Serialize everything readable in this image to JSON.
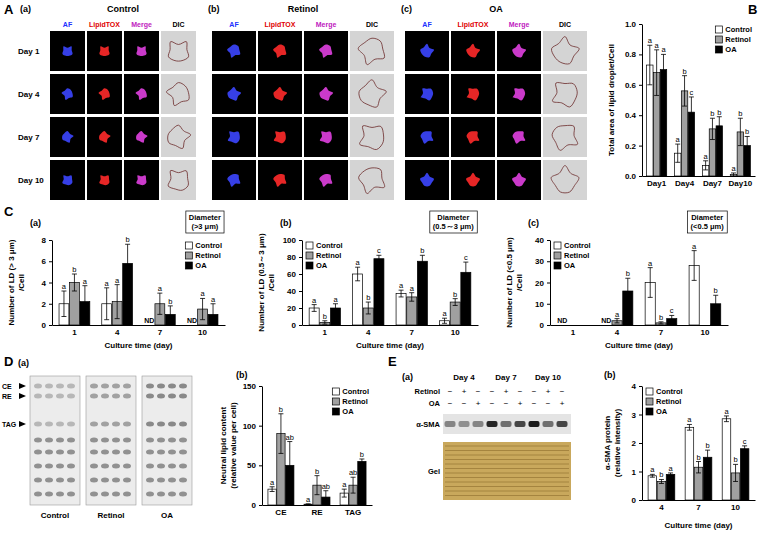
{
  "chart_data": [
    {
      "type": "bar",
      "categories": [
        "Day1",
        "Day4",
        "Day7",
        "Day10"
      ],
      "y_label": "Total area of lipid droplet/Cell",
      "ylim": [
        0,
        1.0
      ],
      "yticks": [
        {
          "value": 0,
          "label": "0.0"
        },
        {
          "value": 0.2,
          "label": "0.2"
        },
        {
          "value": 0.4,
          "label": "0.4"
        },
        {
          "value": 0.6,
          "label": "0.6"
        },
        {
          "value": 0.8,
          "label": "0.8"
        },
        {
          "value": 1.0,
          "label": "1.0"
        }
      ],
      "legend": "upper right",
      "series": [
        {
          "name": "Control",
          "color": "#ffffff",
          "values": [
            0.73,
            0.15,
            0.07,
            0.01
          ],
          "errors": [
            0.13,
            0.06,
            0.03,
            0.01
          ],
          "letters": [
            "a",
            "a",
            "a",
            "a"
          ]
        },
        {
          "name": "Retinol",
          "color": "#a0a0a0",
          "values": [
            0.68,
            0.56,
            0.31,
            0.29
          ],
          "errors": [
            0.15,
            0.1,
            0.07,
            0.09
          ],
          "letters": [
            "a",
            "b",
            "b",
            "b"
          ]
        },
        {
          "name": "OA",
          "color": "#000000",
          "values": [
            0.7,
            0.42,
            0.33,
            0.2
          ],
          "errors": [
            0.1,
            0.1,
            0.06,
            0.06
          ],
          "letters": [
            "a",
            "c",
            "b",
            "b"
          ]
        }
      ]
    },
    {
      "type": "bar",
      "title": "(a)",
      "categories": [
        "1",
        "4",
        "7",
        "10"
      ],
      "x_label": "Culture time (day)",
      "y_label": [
        "Number of LD (> 3 μm)",
        "/Cell"
      ],
      "annotation": [
        "Diameter",
        "(>3 μm)"
      ],
      "ylim": [
        0,
        8
      ],
      "yticks": [
        0,
        2,
        4,
        6,
        8
      ],
      "legend": "upper right",
      "series": [
        {
          "name": "Control",
          "color": "#ffffff",
          "values": [
            2.0,
            2.0,
            null,
            null
          ],
          "errors": [
            1.2,
            1.5,
            null,
            null
          ],
          "letters": [
            "a",
            "a",
            null,
            null
          ],
          "value_labels": [
            null,
            null,
            "ND",
            "ND"
          ]
        },
        {
          "name": "Retinol",
          "color": "#a0a0a0",
          "values": [
            4.0,
            2.2,
            2.0,
            1.5
          ],
          "errors": [
            0.8,
            1.6,
            1.0,
            1.0
          ],
          "letters": [
            "b",
            "a",
            "a",
            "a"
          ]
        },
        {
          "name": "OA",
          "color": "#000000",
          "values": [
            2.2,
            5.8,
            1.0,
            1.0
          ],
          "errors": [
            1.5,
            1.8,
            0.8,
            1.0
          ],
          "letters": [
            "a",
            "b",
            "b",
            "a"
          ]
        }
      ]
    },
    {
      "type": "bar",
      "title": "(b)",
      "categories": [
        "1",
        "4",
        "7",
        "10"
      ],
      "x_label": "Culture time (day)",
      "y_label": [
        "Number of LD (0.5～3 μm)",
        "/Cell"
      ],
      "annotation": [
        "Diameter",
        "(0.5～3 μm)"
      ],
      "ylim": [
        0,
        100
      ],
      "yticks": [
        0,
        20,
        40,
        60,
        80,
        100
      ],
      "legend": "upper left",
      "series": [
        {
          "name": "Control",
          "color": "#ffffff",
          "values": [
            20,
            60,
            37,
            5
          ],
          "errors": [
            4,
            8,
            4,
            3
          ],
          "letters": [
            "a",
            "a",
            "a",
            "a"
          ]
        },
        {
          "name": "Retinol",
          "color": "#a0a0a0",
          "values": [
            3,
            20,
            33,
            27
          ],
          "errors": [
            2,
            7,
            5,
            4
          ],
          "letters": [
            "b",
            "b",
            "a",
            "b"
          ]
        },
        {
          "name": "OA",
          "color": "#000000",
          "values": [
            20,
            78,
            75,
            62
          ],
          "errors": [
            5,
            4,
            7,
            12
          ],
          "letters": [
            "a",
            "c",
            "b",
            "c"
          ]
        }
      ]
    },
    {
      "type": "bar",
      "title": "(c)",
      "categories": [
        "1",
        "4",
        "7",
        "10"
      ],
      "x_label": "Culture time (day)",
      "y_label": [
        "Number of LD (<0.5 μm)",
        "/Cell"
      ],
      "annotation": [
        "Diameter",
        "(<0.5 μm)"
      ],
      "ylim": [
        0,
        40
      ],
      "yticks": [
        0,
        10,
        20,
        30,
        40
      ],
      "legend": "upper left",
      "series": [
        {
          "name": "Control",
          "color": "#ffffff",
          "values": [
            null,
            null,
            20,
            28
          ],
          "errors": [
            null,
            null,
            7,
            7
          ],
          "letters": [
            null,
            null,
            "a",
            "a"
          ],
          "value_labels": [
            "ND",
            "ND",
            null,
            null
          ]
        },
        {
          "name": "Retinol",
          "color": "#a0a0a0",
          "values": [
            null,
            2,
            1,
            null
          ],
          "errors": [
            null,
            1,
            0.5,
            null
          ],
          "letters": [
            null,
            "a",
            "b",
            null
          ]
        },
        {
          "name": "OA",
          "color": "#000000",
          "values": [
            null,
            16,
            3,
            10
          ],
          "errors": [
            null,
            6,
            1.5,
            4
          ],
          "letters": [
            null,
            "b",
            "c",
            "b"
          ]
        }
      ]
    },
    {
      "type": "bar",
      "title": "(b)",
      "categories": [
        "CE",
        "RE",
        "TAG"
      ],
      "y_label": [
        "Neutral lipid content",
        "(relative value per cell)"
      ],
      "ylim": [
        0,
        150
      ],
      "yticks": [
        0,
        50,
        100,
        150
      ],
      "legend": "upper right",
      "series": [
        {
          "name": "Control",
          "color": "#ffffff",
          "values": [
            20,
            1,
            15
          ],
          "errors": [
            3,
            0.5,
            5
          ],
          "letters": [
            "a",
            "a",
            "a"
          ]
        },
        {
          "name": "Retinol",
          "color": "#a0a0a0",
          "values": [
            90,
            25,
            25
          ],
          "errors": [
            25,
            12,
            10
          ],
          "letters": [
            "b",
            "b",
            "ab"
          ]
        },
        {
          "name": "OA",
          "color": "#000000",
          "values": [
            50,
            10,
            55
          ],
          "errors": [
            30,
            8,
            3
          ],
          "letters": [
            "ab",
            "ab",
            "b"
          ]
        }
      ]
    },
    {
      "type": "bar",
      "title": "(b)",
      "categories": [
        "4",
        "7",
        "10"
      ],
      "x_label": "Culture time (day)",
      "y_label": [
        "α-SMA protein",
        "(relative intensity)"
      ],
      "ylim": [
        0,
        4
      ],
      "yticks": [
        0,
        1,
        2,
        3,
        4
      ],
      "legend": "upper left",
      "series": [
        {
          "name": "Control",
          "color": "#ffffff",
          "values": [
            0.85,
            2.55,
            2.85
          ],
          "errors": [
            0.05,
            0.1,
            0.1
          ],
          "letters": [
            "a",
            "a",
            "a"
          ]
        },
        {
          "name": "Retinol",
          "color": "#a0a0a0",
          "values": [
            0.65,
            1.15,
            0.95
          ],
          "errors": [
            0.07,
            0.2,
            0.3
          ],
          "letters": [
            "b",
            "b",
            "b"
          ]
        },
        {
          "name": "OA",
          "color": "#000000",
          "values": [
            0.9,
            1.5,
            1.8
          ],
          "errors": [
            0.05,
            0.25,
            0.1
          ],
          "letters": [
            "a",
            "b",
            "c"
          ]
        }
      ]
    }
  ],
  "figure": {
    "panel_labels": [
      "A",
      "B",
      "C",
      "D",
      "E"
    ],
    "micrographs": {
      "channels": [
        "AF",
        "LipidTOX",
        "Merge",
        "DIC"
      ],
      "rows": [
        "Day 1",
        "Day 4",
        "Day 7",
        "Day 10"
      ],
      "panels": [
        {
          "label": "(a)",
          "title": "Control"
        },
        {
          "label": "(b)",
          "title": "Retinol"
        },
        {
          "label": "(c)",
          "title": "OA"
        }
      ]
    },
    "tlc": {
      "label": "(a)",
      "bands": [
        "CE",
        "RE",
        "TAG"
      ],
      "lanes": [
        "Control",
        "Retinol",
        "OA"
      ]
    },
    "blot": {
      "label": "(a)",
      "days": [
        "Day 4",
        "Day 7",
        "Day 10"
      ],
      "rows": [
        {
          "name": "Retinol",
          "signs": [
            "−",
            "+",
            "−",
            "−",
            "+",
            "−",
            "−",
            "+",
            "−"
          ]
        },
        {
          "name": "OA",
          "signs": [
            "−",
            "−",
            "+",
            "−",
            "−",
            "+",
            "−",
            "−",
            "+"
          ]
        }
      ],
      "bands": [
        "α-SMA",
        "Gel"
      ]
    }
  }
}
